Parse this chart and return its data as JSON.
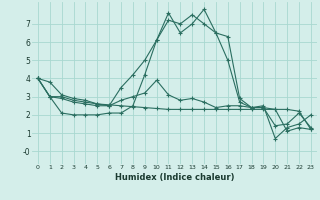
{
  "xlabel": "Humidex (Indice chaleur)",
  "xlim": [
    -0.5,
    23.5
  ],
  "ylim": [
    -0.7,
    8.2
  ],
  "yticks": [
    0,
    1,
    2,
    3,
    4,
    5,
    6,
    7
  ],
  "ytick_labels": [
    "-0",
    "1",
    "2",
    "3",
    "4",
    "5",
    "6",
    "7"
  ],
  "xticks": [
    0,
    1,
    2,
    3,
    4,
    5,
    6,
    7,
    8,
    9,
    10,
    11,
    12,
    13,
    14,
    15,
    16,
    17,
    18,
    19,
    20,
    21,
    22,
    23
  ],
  "bg_color": "#d4eeea",
  "grid_color": "#a8d8d0",
  "line_color": "#2a6e60",
  "series": [
    [
      4.0,
      3.8,
      3.1,
      2.9,
      2.8,
      2.6,
      2.55,
      2.5,
      2.45,
      2.4,
      2.35,
      2.3,
      2.3,
      2.3,
      2.3,
      2.3,
      2.3,
      2.3,
      2.3,
      2.3,
      2.3,
      2.3,
      2.2,
      1.2
    ],
    [
      4.0,
      3.0,
      2.1,
      2.0,
      2.0,
      2.0,
      2.1,
      2.1,
      2.5,
      4.2,
      6.1,
      7.2,
      7.0,
      7.5,
      7.0,
      6.5,
      5.0,
      2.7,
      2.4,
      2.4,
      1.4,
      1.5,
      2.1,
      1.3
    ],
    [
      4.0,
      3.0,
      3.0,
      2.8,
      2.7,
      2.6,
      2.5,
      3.5,
      4.2,
      5.0,
      6.1,
      7.6,
      6.5,
      7.0,
      7.8,
      6.5,
      6.3,
      2.9,
      2.4,
      2.5,
      0.7,
      1.3,
      1.5,
      2.0
    ],
    [
      4.0,
      3.0,
      2.9,
      2.7,
      2.6,
      2.5,
      2.5,
      2.8,
      3.0,
      3.2,
      3.9,
      3.1,
      2.8,
      2.9,
      2.7,
      2.4,
      2.5,
      2.5,
      2.4,
      2.4,
      2.3,
      1.1,
      1.3,
      1.2
    ]
  ]
}
